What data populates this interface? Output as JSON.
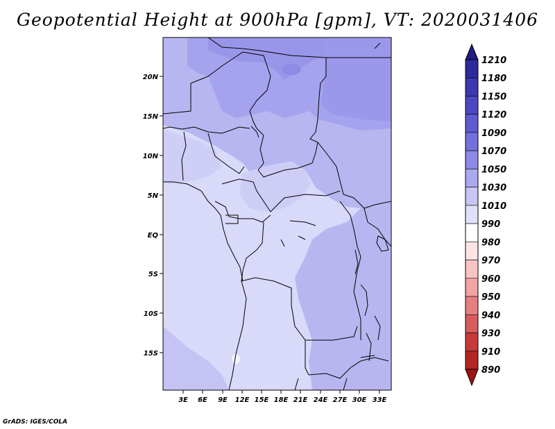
{
  "title": "Geopotential Height at 900hPa [gpm], VT: 2020031406",
  "credit": "GrADS: IGES/COLA",
  "map": {
    "lat_labels": [
      "20N",
      "15N",
      "10N",
      "5N",
      "EQ",
      "5S",
      "10S",
      "15S"
    ],
    "lon_labels": [
      "3E",
      "6E",
      "9E",
      "12E",
      "15E",
      "18E",
      "21E",
      "24E",
      "27E",
      "30E",
      "33E"
    ]
  },
  "colorbar": {
    "labels": [
      "1210",
      "1180",
      "1150",
      "1120",
      "1090",
      "1070",
      "1050",
      "1030",
      "1010",
      "990",
      "980",
      "970",
      "960",
      "950",
      "940",
      "930",
      "910",
      "890"
    ],
    "colors": [
      "#231a85",
      "#2f2a9c",
      "#3d37b0",
      "#4d47c2",
      "#5e5ad0",
      "#7470dc",
      "#8d8ae6",
      "#aaa8ee",
      "#c6c5f3",
      "#e0e0fa",
      "#ffffff",
      "#fde4e4",
      "#f8c4c4",
      "#f0a4a4",
      "#e58080",
      "#d85c5c",
      "#c73a3a",
      "#b32424",
      "#9c1414"
    ]
  }
}
